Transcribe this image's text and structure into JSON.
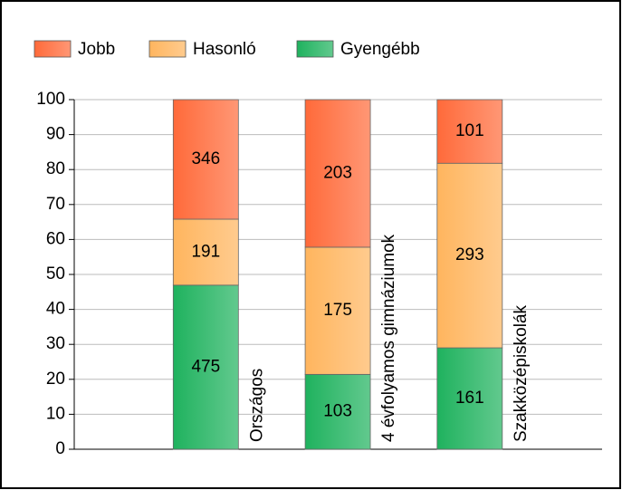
{
  "chart_data": {
    "type": "bar",
    "stacking": "percent",
    "categories": [
      "Országos",
      "4 évfolyamos gimnáziumok",
      "Szakközépiskolák"
    ],
    "series": [
      {
        "name": "Jobb",
        "color": "#ff6a3a",
        "values": [
          346,
          203,
          101
        ]
      },
      {
        "name": "Hasonló",
        "color": "#ffb55e",
        "values": [
          191,
          175,
          293
        ]
      },
      {
        "name": "Gyengébb",
        "color": "#1fb25e",
        "values": [
          475,
          103,
          161
        ]
      }
    ],
    "ylim": [
      0,
      100
    ],
    "yticks": [
      0,
      10,
      20,
      30,
      40,
      50,
      60,
      70,
      80,
      90,
      100
    ],
    "grid": true,
    "legend": "top"
  }
}
